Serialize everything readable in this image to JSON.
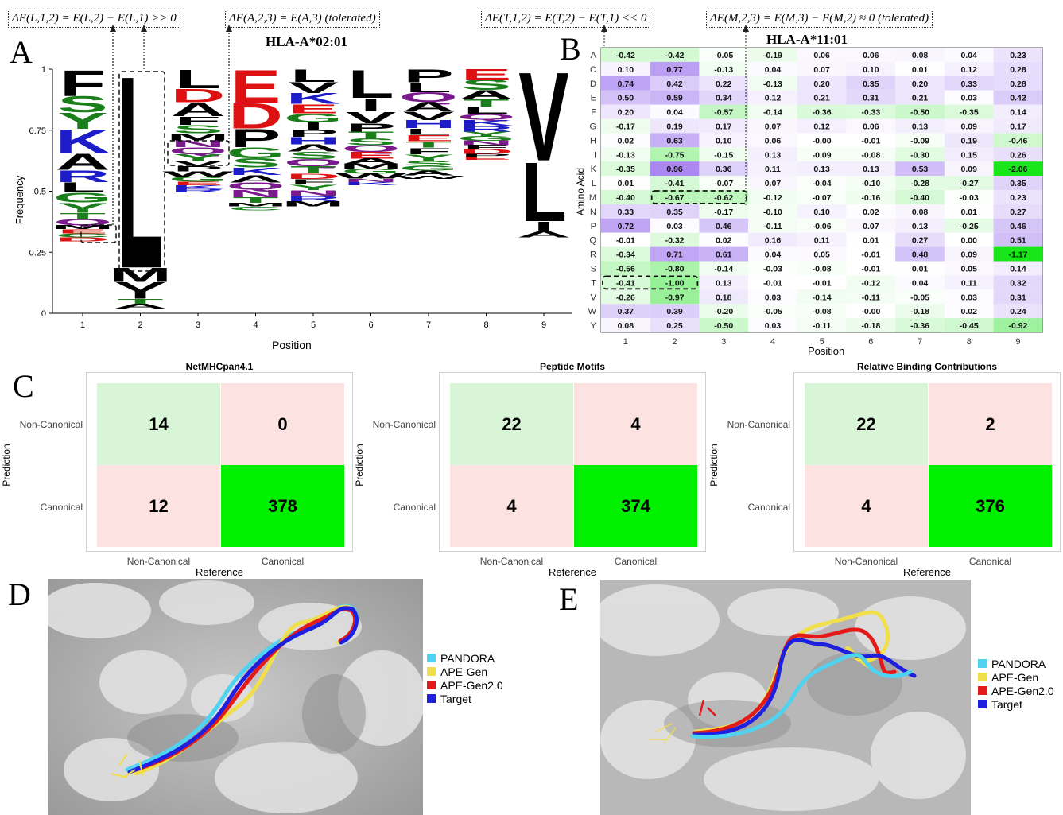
{
  "panels": {
    "A": "A",
    "B": "B",
    "C": "C",
    "D": "D",
    "E": "E"
  },
  "annotations": {
    "A_left": "ΔE(L,1,2) = E(L,2) − E(L,1) >> 0",
    "A_right": "ΔE(A,2,3) = E(A,3) (tolerated)",
    "B_left": "ΔE(T,1,2) = E(T,2) − E(T,1) << 0",
    "B_right": "ΔE(M,2,3) = E(M,3) − E(M,2) ≈ 0 (tolerated)"
  },
  "logo": {
    "allele": "HLA-A*02:01",
    "ylabel": "Frequency",
    "xlabel": "Position",
    "yticks": [
      "0",
      "0.25",
      "0.5",
      "0.75",
      "1"
    ],
    "positions": [
      "1",
      "2",
      "3",
      "4",
      "5",
      "6",
      "7",
      "8",
      "9"
    ]
  },
  "heatmap": {
    "allele": "HLA-A*11:01",
    "ylabel": "Amino Acid",
    "xlabel": "Position",
    "positions": [
      "1",
      "2",
      "3",
      "4",
      "5",
      "6",
      "7",
      "8",
      "9"
    ],
    "amino_acids": [
      "A",
      "C",
      "D",
      "E",
      "F",
      "G",
      "H",
      "I",
      "K",
      "L",
      "M",
      "N",
      "P",
      "Q",
      "R",
      "S",
      "T",
      "V",
      "W",
      "Y"
    ],
    "values": [
      [
        "-0.42",
        "-0.42",
        "-0.05",
        "-0.19",
        "0.06",
        "0.06",
        "0.08",
        "0.04",
        "0.23"
      ],
      [
        "0.10",
        "0.77",
        "-0.13",
        "0.04",
        "0.07",
        "0.10",
        "0.01",
        "0.12",
        "0.28"
      ],
      [
        "0.74",
        "0.42",
        "0.22",
        "-0.13",
        "0.20",
        "0.35",
        "0.20",
        "0.33",
        "0.28"
      ],
      [
        "0.50",
        "0.59",
        "0.34",
        "0.12",
        "0.21",
        "0.31",
        "0.21",
        "0.03",
        "0.42"
      ],
      [
        "0.20",
        "0.04",
        "-0.57",
        "-0.14",
        "-0.36",
        "-0.33",
        "-0.50",
        "-0.35",
        "0.14"
      ],
      [
        "-0.17",
        "0.19",
        "0.17",
        "0.07",
        "0.12",
        "0.06",
        "0.13",
        "0.09",
        "0.17"
      ],
      [
        "0.02",
        "0.63",
        "0.10",
        "0.06",
        "-0.00",
        "-0.01",
        "-0.09",
        "0.19",
        "-0.46"
      ],
      [
        "-0.13",
        "-0.75",
        "-0.15",
        "0.13",
        "-0.09",
        "-0.08",
        "-0.30",
        "0.15",
        "0.26"
      ],
      [
        "-0.35",
        "0.96",
        "0.36",
        "0.11",
        "0.13",
        "0.13",
        "0.53",
        "0.09",
        "-2.06"
      ],
      [
        "0.01",
        "-0.41",
        "-0.07",
        "0.07",
        "-0.04",
        "-0.10",
        "-0.28",
        "-0.27",
        "0.35"
      ],
      [
        "-0.40",
        "-0.67",
        "-0.62",
        "-0.12",
        "-0.07",
        "-0.16",
        "-0.40",
        "-0.03",
        "0.23"
      ],
      [
        "0.33",
        "0.35",
        "-0.17",
        "-0.10",
        "0.10",
        "0.02",
        "0.08",
        "0.01",
        "0.27"
      ],
      [
        "0.72",
        "0.03",
        "0.46",
        "-0.11",
        "-0.06",
        "0.07",
        "0.13",
        "-0.25",
        "0.46"
      ],
      [
        "-0.01",
        "-0.32",
        "0.02",
        "0.16",
        "0.11",
        "0.01",
        "0.27",
        "0.00",
        "0.51"
      ],
      [
        "-0.34",
        "0.71",
        "0.61",
        "0.04",
        "0.05",
        "-0.01",
        "0.48",
        "0.09",
        "-1.17"
      ],
      [
        "-0.56",
        "-0.80",
        "-0.14",
        "-0.03",
        "-0.08",
        "-0.01",
        "0.01",
        "0.05",
        "0.14"
      ],
      [
        "-0.41",
        "-1.00",
        "0.13",
        "-0.01",
        "-0.01",
        "-0.12",
        "0.04",
        "0.11",
        "0.32"
      ],
      [
        "-0.26",
        "-0.97",
        "0.18",
        "0.03",
        "-0.14",
        "-0.11",
        "-0.05",
        "0.03",
        "0.31"
      ],
      [
        "0.37",
        "0.39",
        "-0.20",
        "-0.05",
        "-0.08",
        "-0.00",
        "-0.18",
        "0.02",
        "0.24"
      ],
      [
        "0.08",
        "0.25",
        "-0.50",
        "0.03",
        "-0.11",
        "-0.18",
        "-0.36",
        "-0.45",
        "-0.92"
      ]
    ]
  },
  "confusion_matrices": {
    "row_axis": "Prediction",
    "col_axis": "Reference",
    "row_labels": [
      "Non-Canonical",
      "Canonical"
    ],
    "col_labels": [
      "Non-Canonical",
      "Canonical"
    ],
    "items": [
      {
        "title": "NetMHCpan4.1",
        "cells": [
          "14",
          "0",
          "12",
          "378"
        ]
      },
      {
        "title": "Peptide Motifs",
        "cells": [
          "22",
          "4",
          "4",
          "374"
        ]
      },
      {
        "title": "Relative Binding Contributions",
        "cells": [
          "22",
          "2",
          "4",
          "376"
        ]
      }
    ]
  },
  "structures": {
    "legend": [
      {
        "label": "PANDORA",
        "color": "#4fd3f0"
      },
      {
        "label": "APE-Gen",
        "color": "#f0de4a"
      },
      {
        "label": "APE-Gen2.0",
        "color": "#e31a1a"
      },
      {
        "label": "Target",
        "color": "#1f1fe0"
      }
    ]
  },
  "chart_data": [
    {
      "type": "heatmap",
      "title": "HLA-A*11:01",
      "xlabel": "Position",
      "ylabel": "Amino Acid",
      "x": [
        1,
        2,
        3,
        4,
        5,
        6,
        7,
        8,
        9
      ],
      "y": [
        "A",
        "C",
        "D",
        "E",
        "F",
        "G",
        "H",
        "I",
        "K",
        "L",
        "M",
        "N",
        "P",
        "Q",
        "R",
        "S",
        "T",
        "V",
        "W",
        "Y"
      ],
      "values": [
        [
          -0.42,
          -0.42,
          -0.05,
          -0.19,
          0.06,
          0.06,
          0.08,
          0.04,
          0.23
        ],
        [
          0.1,
          0.77,
          -0.13,
          0.04,
          0.07,
          0.1,
          0.01,
          0.12,
          0.28
        ],
        [
          0.74,
          0.42,
          0.22,
          -0.13,
          0.2,
          0.35,
          0.2,
          0.33,
          0.28
        ],
        [
          0.5,
          0.59,
          0.34,
          0.12,
          0.21,
          0.31,
          0.21,
          0.03,
          0.42
        ],
        [
          0.2,
          0.04,
          -0.57,
          -0.14,
          -0.36,
          -0.33,
          -0.5,
          -0.35,
          0.14
        ],
        [
          -0.17,
          0.19,
          0.17,
          0.07,
          0.12,
          0.06,
          0.13,
          0.09,
          0.17
        ],
        [
          0.02,
          0.63,
          0.1,
          0.06,
          0.0,
          -0.01,
          -0.09,
          0.19,
          -0.46
        ],
        [
          -0.13,
          -0.75,
          -0.15,
          0.13,
          -0.09,
          -0.08,
          -0.3,
          0.15,
          0.26
        ],
        [
          -0.35,
          0.96,
          0.36,
          0.11,
          0.13,
          0.13,
          0.53,
          0.09,
          -2.06
        ],
        [
          0.01,
          -0.41,
          -0.07,
          0.07,
          -0.04,
          -0.1,
          -0.28,
          -0.27,
          0.35
        ],
        [
          -0.4,
          -0.67,
          -0.62,
          -0.12,
          -0.07,
          -0.16,
          -0.4,
          -0.03,
          0.23
        ],
        [
          0.33,
          0.35,
          -0.17,
          -0.1,
          0.1,
          0.02,
          0.08,
          0.01,
          0.27
        ],
        [
          0.72,
          0.03,
          0.46,
          -0.11,
          -0.06,
          0.07,
          0.13,
          -0.25,
          0.46
        ],
        [
          -0.01,
          -0.32,
          0.02,
          0.16,
          0.11,
          0.01,
          0.27,
          0.0,
          0.51
        ],
        [
          -0.34,
          0.71,
          0.61,
          0.04,
          0.05,
          -0.01,
          0.48,
          0.09,
          -1.17
        ],
        [
          -0.56,
          -0.8,
          -0.14,
          -0.03,
          -0.08,
          -0.01,
          0.01,
          0.05,
          0.14
        ],
        [
          -0.41,
          -1.0,
          0.13,
          -0.01,
          -0.01,
          -0.12,
          0.04,
          0.11,
          0.32
        ],
        [
          -0.26,
          -0.97,
          0.18,
          0.03,
          -0.14,
          -0.11,
          -0.05,
          0.03,
          0.31
        ],
        [
          0.37,
          0.39,
          -0.2,
          -0.05,
          -0.08,
          0.0,
          -0.18,
          0.02,
          0.24
        ],
        [
          0.08,
          0.25,
          -0.5,
          0.03,
          -0.11,
          -0.18,
          -0.36,
          -0.45,
          -0.92
        ]
      ]
    },
    {
      "type": "heatmap",
      "title": "NetMHCpan4.1",
      "xlabel": "Reference",
      "ylabel": "Prediction",
      "x": [
        "Non-Canonical",
        "Canonical"
      ],
      "y": [
        "Non-Canonical",
        "Canonical"
      ],
      "values": [
        [
          14,
          0
        ],
        [
          12,
          378
        ]
      ]
    },
    {
      "type": "heatmap",
      "title": "Peptide Motifs",
      "xlabel": "Reference",
      "ylabel": "Prediction",
      "x": [
        "Non-Canonical",
        "Canonical"
      ],
      "y": [
        "Non-Canonical",
        "Canonical"
      ],
      "values": [
        [
          22,
          4
        ],
        [
          4,
          374
        ]
      ]
    },
    {
      "type": "heatmap",
      "title": "Relative Binding Contributions",
      "xlabel": "Reference",
      "ylabel": "Prediction",
      "x": [
        "Non-Canonical",
        "Canonical"
      ],
      "y": [
        "Non-Canonical",
        "Canonical"
      ],
      "values": [
        [
          22,
          2
        ],
        [
          4,
          376
        ]
      ]
    }
  ]
}
